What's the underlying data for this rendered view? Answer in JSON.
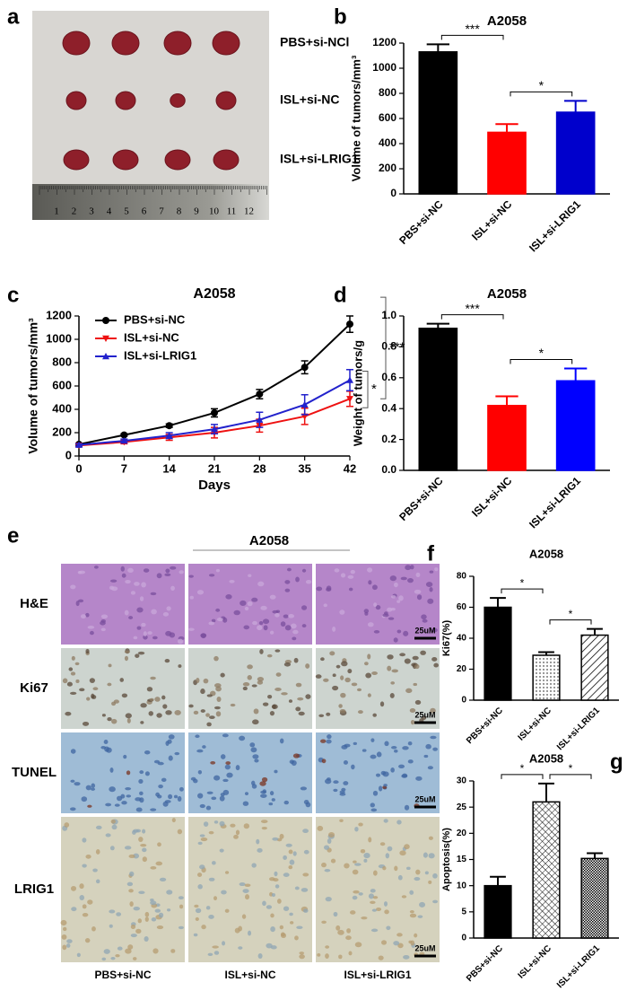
{
  "panel_labels": [
    "a",
    "b",
    "c",
    "d",
    "e",
    "f",
    "g"
  ],
  "photo": {
    "groups": [
      "PBS+si-NCl",
      "ISL+si-NC",
      "ISL+si-LRIG1"
    ],
    "ruler": [
      1,
      2,
      3,
      4,
      5,
      6,
      7,
      8,
      9,
      10,
      11,
      12
    ]
  },
  "staining": {
    "title": "A2058",
    "rows": [
      "H&E",
      "Ki67",
      "TUNEL",
      "LRIG1"
    ],
    "columns": [
      "PBS+si-NC",
      "ISL+si-NC",
      "ISL+si-LRIG1"
    ],
    "scale_bar": "25uM"
  },
  "chart_data": [
    {
      "type": "bar",
      "title": "A2058",
      "ylabel": "Volume of tumors/mm³",
      "categories": [
        "PBS+si-NC",
        "ISL+si-NC",
        "ISL+si-LRIG1"
      ],
      "values": [
        1130,
        490,
        650
      ],
      "errors": [
        60,
        65,
        90
      ],
      "colors": [
        "#000000",
        "#ff0000",
        "#0000cc"
      ],
      "fills": [
        "solid",
        "solid",
        "solid"
      ],
      "ylim": [
        0,
        1200
      ],
      "yticks": [
        0,
        200,
        400,
        600,
        800,
        1000,
        1200
      ],
      "annotations": [
        "***",
        "*"
      ]
    },
    {
      "type": "line",
      "title": "A2058",
      "xlabel": "Days",
      "ylabel": "Volume of tumors/mm³",
      "x": [
        0,
        7,
        14,
        21,
        28,
        35,
        42
      ],
      "series": [
        {
          "name": "PBS+si-NC",
          "color": "#000000",
          "marker": "circle",
          "values": [
            100,
            180,
            260,
            370,
            530,
            760,
            1130
          ],
          "errors": [
            10,
            10,
            15,
            35,
            40,
            55,
            70
          ]
        },
        {
          "name": "ISL+si-NC",
          "color": "#ee1111",
          "marker": "triangle-down",
          "values": [
            90,
            120,
            160,
            200,
            260,
            340,
            490
          ],
          "errors": [
            10,
            15,
            25,
            45,
            55,
            70,
            65
          ]
        },
        {
          "name": "ISL+si-LRIG1",
          "color": "#2222cc",
          "marker": "triangle-up",
          "values": [
            95,
            130,
            175,
            230,
            310,
            440,
            650
          ],
          "errors": [
            10,
            15,
            25,
            40,
            65,
            85,
            90
          ]
        }
      ],
      "xlim": [
        0,
        42
      ],
      "xticks": [
        0,
        7,
        14,
        21,
        28,
        35,
        42
      ],
      "ylim": [
        0,
        1200
      ],
      "yticks": [
        0,
        200,
        400,
        600,
        800,
        1000,
        1200
      ],
      "annotations": [
        "***",
        "*"
      ]
    },
    {
      "type": "bar",
      "title": "A2058",
      "ylabel": "Weight of tumors/g",
      "categories": [
        "PBS+si-NC",
        "ISL+si-NC",
        "ISL+si-LRIG1"
      ],
      "values": [
        0.92,
        0.42,
        0.58
      ],
      "errors": [
        0.03,
        0.06,
        0.08
      ],
      "colors": [
        "#000000",
        "#ff0000",
        "#0000ff"
      ],
      "fills": [
        "solid",
        "solid",
        "solid"
      ],
      "ylim": [
        0,
        1
      ],
      "yticks": [
        {
          "value": 0,
          "label": "0.0"
        },
        0.2,
        0.4,
        0.6,
        0.8,
        {
          "value": 1,
          "label": "1.0"
        }
      ],
      "annotations": [
        "***",
        "*"
      ]
    },
    {
      "type": "bar",
      "title": "A2058",
      "ylabel": "Ki67(%)",
      "categories": [
        "PBS+si-NC",
        "ISL+si-NC",
        "ISL+si-LRIG1"
      ],
      "values": [
        60,
        29,
        42
      ],
      "errors": [
        6,
        2,
        4
      ],
      "colors": [
        "#000000",
        "#000000",
        "#000000"
      ],
      "fills": [
        "solid",
        "dots",
        "hatch"
      ],
      "ylim": [
        0,
        80
      ],
      "yticks": [
        0,
        20,
        40,
        60,
        80
      ],
      "annotations": [
        "*",
        "*"
      ]
    },
    {
      "type": "bar",
      "title": "A2058",
      "ylabel": "Apoptosis(%)",
      "categories": [
        "PBS+si-NC",
        "ISL+si-NC",
        "ISL+si-LRIG1"
      ],
      "values": [
        10,
        26,
        15.2
      ],
      "errors": [
        1.7,
        3.5,
        1
      ],
      "colors": [
        "#000000",
        "#000000",
        "#000000"
      ],
      "fills": [
        "solid",
        "grid",
        "checker"
      ],
      "ylim": [
        0,
        30
      ],
      "yticks": [
        0,
        5,
        10,
        15,
        20,
        25,
        30
      ],
      "annotations": [
        "*",
        "*"
      ]
    }
  ]
}
